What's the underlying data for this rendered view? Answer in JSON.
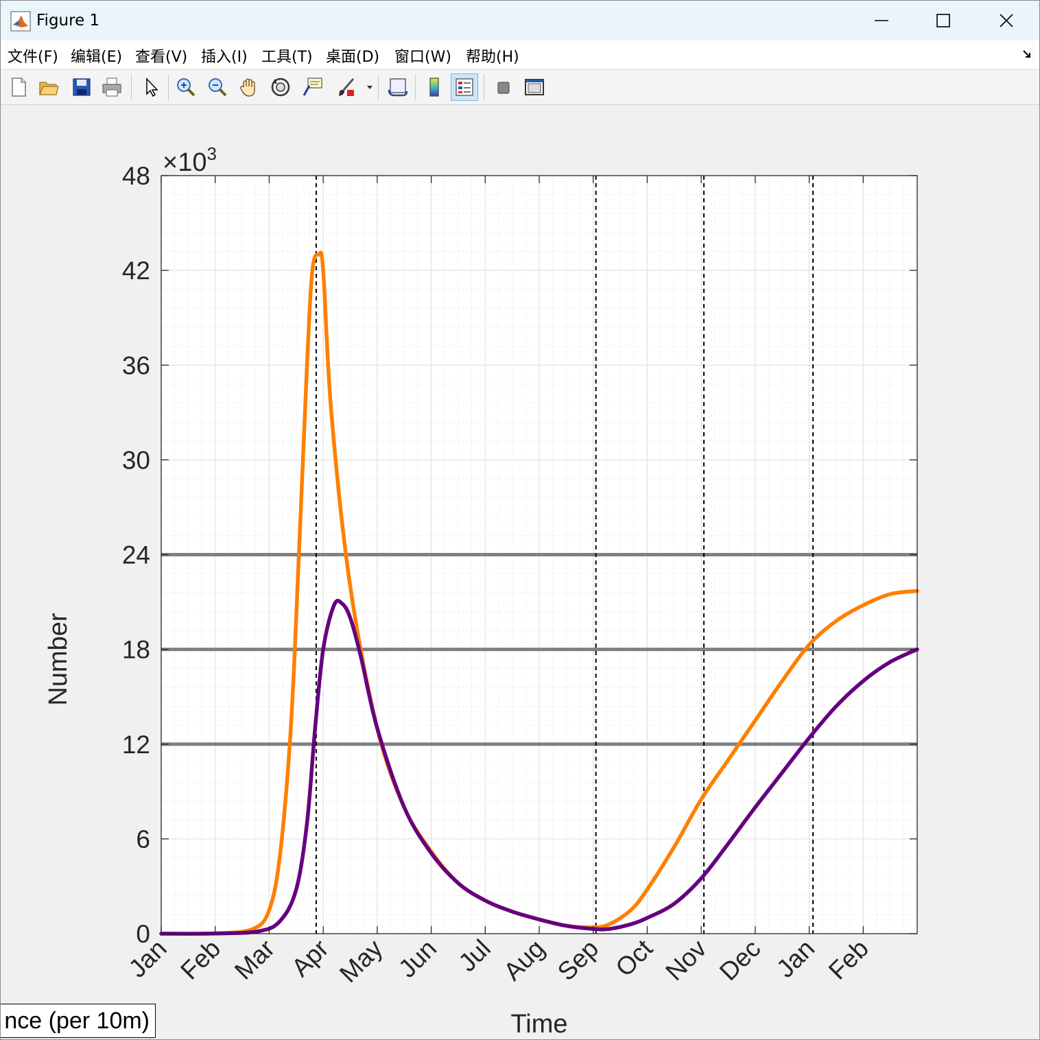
{
  "window": {
    "title": "Figure 1",
    "menu": [
      "文件(F)",
      "编辑(E)",
      "查看(V)",
      "插入(I)",
      "工具(T)",
      "桌面(D)",
      "窗口(W)",
      "帮助(H)"
    ],
    "toolbar_icons": [
      "new-figure-icon",
      "open-file-icon",
      "save-icon",
      "print-icon",
      "pointer-icon",
      "zoom-in-icon",
      "zoom-out-icon",
      "pan-icon",
      "rotate-3d-icon",
      "data-cursor-icon",
      "brush-icon",
      "link-plot-icon",
      "colorbar-icon",
      "legend-icon",
      "hide-plot-tools-icon",
      "show-plot-tools-icon"
    ],
    "legend_text": "nce (per 10m)"
  },
  "chart_data": {
    "type": "line",
    "xlabel": "Time",
    "ylabel": "Number",
    "y_exponent": "×10^3",
    "exponent_base": "×10",
    "exponent_power": "3",
    "ylim": [
      0,
      48
    ],
    "yticks": [
      "0",
      "6",
      "12",
      "18",
      "24",
      "30",
      "36",
      "42",
      "48"
    ],
    "x_unit": "months elapsed",
    "xlim": [
      0,
      14
    ],
    "xticks": [
      "Jan",
      "Feb",
      "Mar",
      "Apr",
      "May",
      "Jun",
      "Jul",
      "Aug",
      "Sep",
      "Oct",
      "Nov",
      "Dec",
      "Jan",
      "Feb"
    ],
    "grid": true,
    "minor_grid": true,
    "horizontal_lines": [
      12,
      18,
      24
    ],
    "vertical_dashed_lines_at_month": [
      2.87,
      8.05,
      10.05,
      12.07
    ],
    "series": [
      {
        "color": "#ff7f00",
        "x": [
          0,
          1,
          1.7,
          2.0,
          2.2,
          2.4,
          2.55,
          2.7,
          2.8,
          2.92,
          3.0,
          3.15,
          3.5,
          4.0,
          4.5,
          5.0,
          5.5,
          6.0,
          6.5,
          7.0,
          7.5,
          8.0,
          8.3,
          8.7,
          9.0,
          9.5,
          10.0,
          10.5,
          11.0,
          11.5,
          12.0,
          12.5,
          13.0,
          13.5,
          14.0
        ],
        "y": [
          0,
          0.02,
          0.3,
          1.5,
          5,
          13,
          24,
          36,
          42,
          43,
          42,
          33,
          22,
          13,
          8,
          5.2,
          3.2,
          2.1,
          1.4,
          0.9,
          0.5,
          0.4,
          0.6,
          1.5,
          2.8,
          5.5,
          8.5,
          11,
          13.5,
          16,
          18.3,
          19.8,
          20.8,
          21.5,
          21.7
        ]
      },
      {
        "color": "#660080",
        "x": [
          0,
          1,
          1.8,
          2.2,
          2.5,
          2.7,
          2.85,
          3.0,
          3.2,
          3.35,
          3.5,
          3.7,
          4.0,
          4.5,
          5.0,
          5.5,
          6.0,
          6.5,
          7.0,
          7.5,
          8.0,
          8.3,
          8.7,
          9.0,
          9.5,
          10.0,
          10.5,
          11.0,
          11.5,
          12.0,
          12.5,
          13.0,
          13.5,
          14.0
        ],
        "y": [
          0,
          0.01,
          0.15,
          0.8,
          2.8,
          7,
          13,
          18,
          20.8,
          20.9,
          20,
          17.5,
          13,
          8,
          5.1,
          3.2,
          2.1,
          1.4,
          0.9,
          0.5,
          0.3,
          0.3,
          0.6,
          1.0,
          1.9,
          3.5,
          5.7,
          8.0,
          10.2,
          12.4,
          14.4,
          16.0,
          17.2,
          18.0
        ]
      }
    ]
  }
}
